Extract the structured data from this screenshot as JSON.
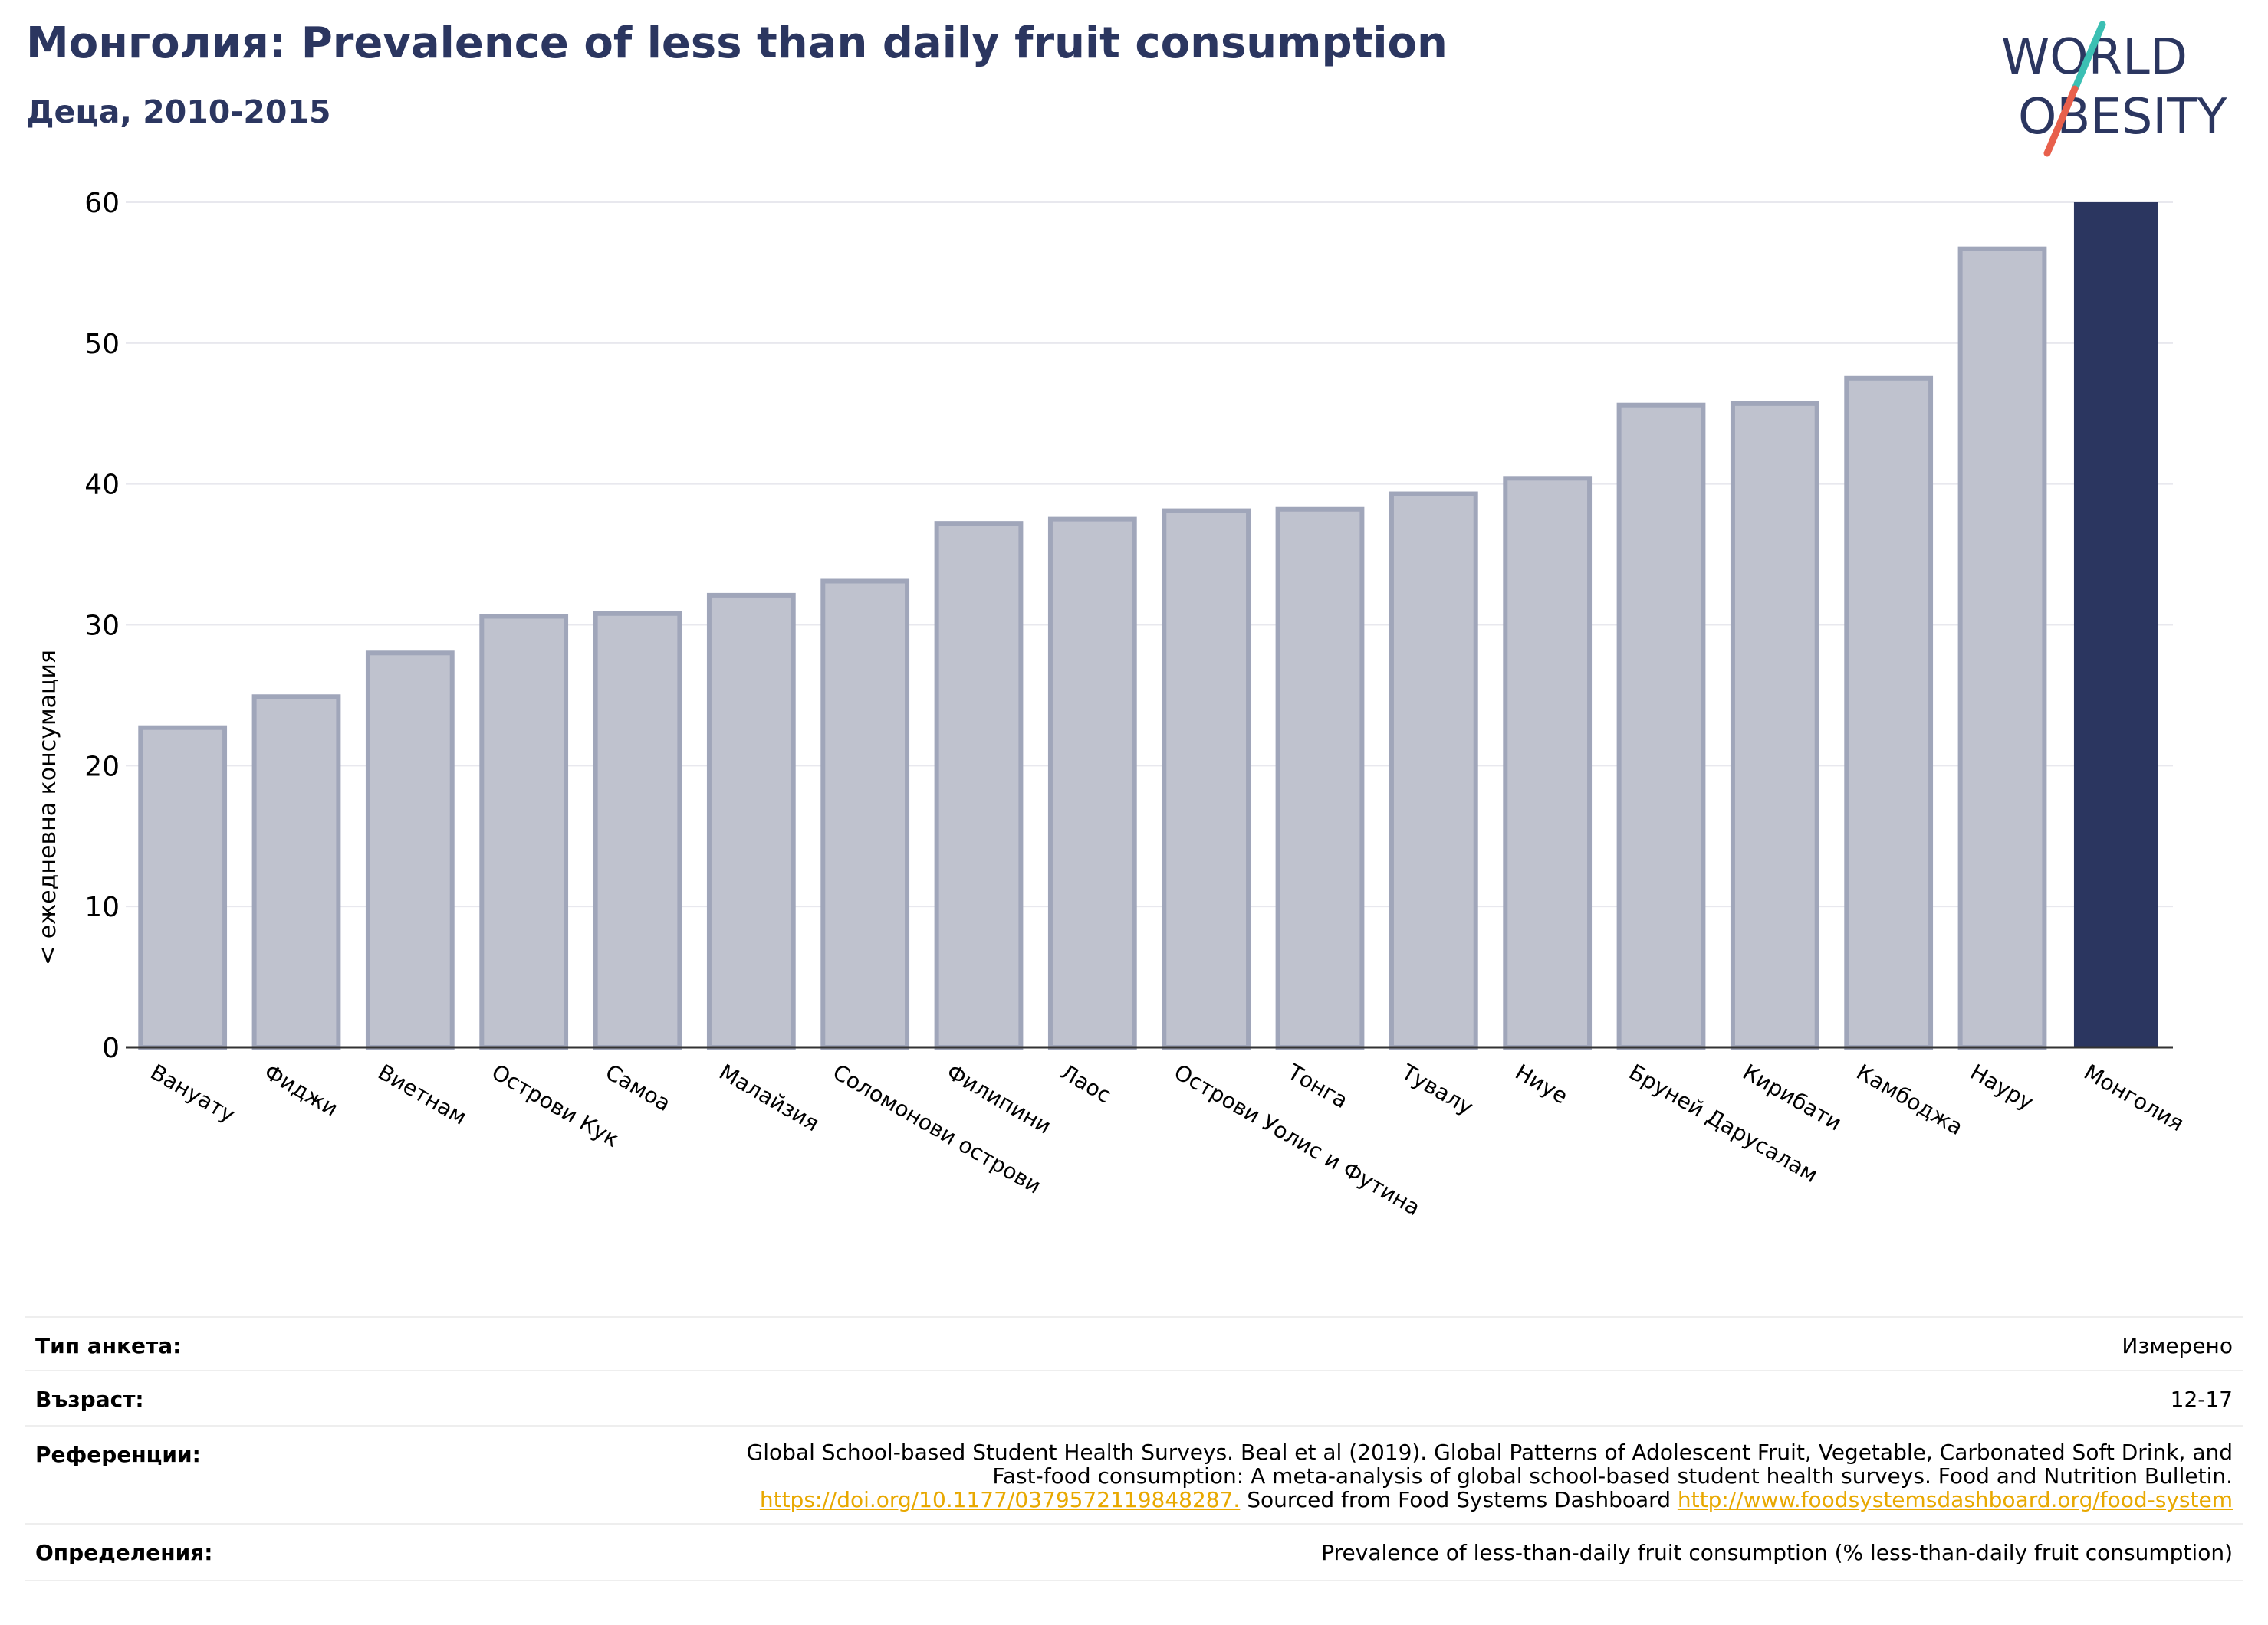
{
  "header": {
    "title": "Монголия: Prevalence of less than daily fruit consumption",
    "subtitle": "Деца, 2010-2015"
  },
  "logo": {
    "line1": "WORLD",
    "line2": "OBESITY",
    "text_color": "#2b3660",
    "slash_colors": [
      "#3bbfb3",
      "#e8604c"
    ]
  },
  "chart_data": {
    "type": "bar",
    "title": "Монголия: Prevalence of less than daily fruit consumption",
    "subtitle": "Деца, 2010-2015",
    "ylabel": "< ежедневна консумация",
    "xlabel": "",
    "ylim": [
      0,
      60
    ],
    "yticks": [
      0,
      10,
      20,
      30,
      40,
      50,
      60
    ],
    "grid": true,
    "categories": [
      "Вануату",
      "Фиджи",
      "Виетнам",
      "Острови Кук",
      "Самоа",
      "Малайзия",
      "Соломонови острови",
      "Филипини",
      "Лаос",
      "Острови Уолис и Футина",
      "Тонга",
      "Тувалу",
      "Ниуе",
      "Бруней Дарусалам",
      "Кирибати",
      "Камбоджа",
      "Науру",
      "Монголия"
    ],
    "values": [
      22.7,
      24.9,
      28.0,
      30.6,
      30.8,
      32.1,
      33.1,
      37.2,
      37.5,
      38.1,
      38.2,
      39.3,
      40.4,
      45.6,
      45.7,
      47.5,
      56.7,
      60.0
    ],
    "highlight": "Монголия",
    "colors": {
      "bar": "#bfc2ce",
      "bar_edge": "#a0a6ba",
      "highlight": "#2b3660",
      "grid": "#e8e8ee",
      "axis": "#333333"
    }
  },
  "details": {
    "survey_type_label": "Тип анкета:",
    "survey_type_value": "Измерено",
    "age_label": "Възраст:",
    "age_value": "12-17",
    "references_label": "Референции:",
    "references_line1": "Global School-based Student Health Surveys. Beal et al (2019). Global Patterns of Adolescent Fruit, Vegetable, Carbonated Soft Drink, and",
    "references_line2": "Fast-food consumption: A meta-analysis of global school-based student health surveys. Food and Nutrition Bulletin.",
    "references_link1": "https://doi.org/10.1177/0379572119848287.",
    "references_mid": " Sourced from Food Systems Dashboard ",
    "references_link2": "http://www.foodsystemsdashboard.org/food-system",
    "definitions_label": "Определения:",
    "definitions_value": "Prevalence of less-than-daily fruit consumption (% less-than-daily fruit consumption)"
  }
}
